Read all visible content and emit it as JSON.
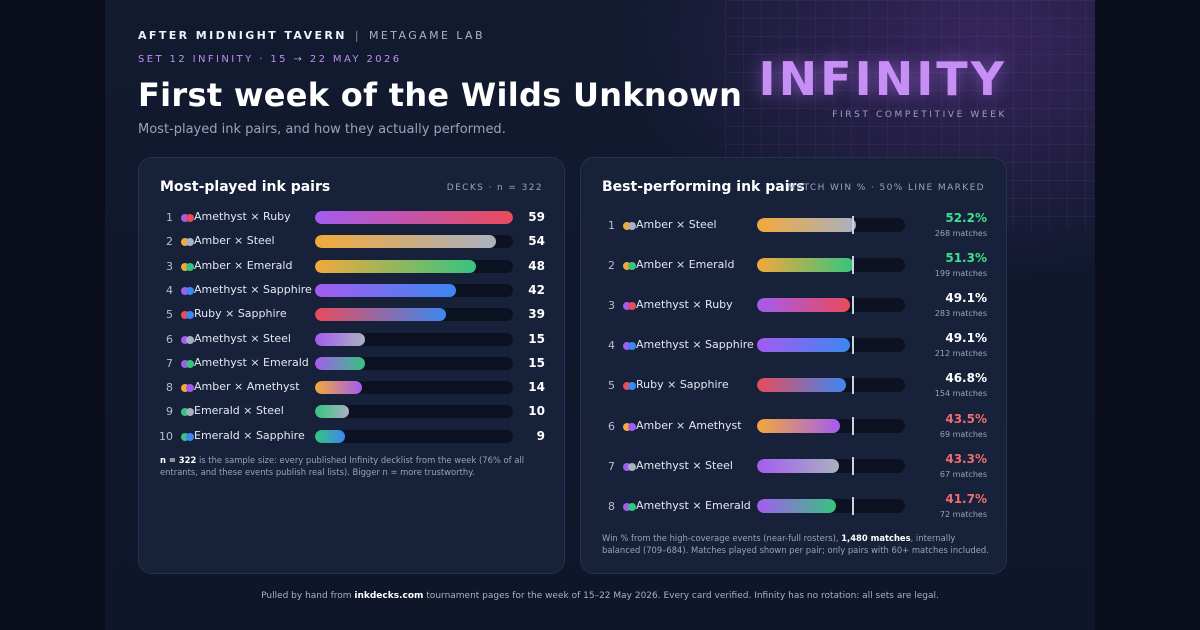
{
  "header": {
    "brand": "AFTER MIDNIGHT TAVERN",
    "separator": "|",
    "lab": "METAGAME LAB",
    "set_line": "SET 12 INFINITY · 15 → 22 MAY 2026",
    "title": "First week of the Wilds Unknown",
    "subtitle": "Most-played ink pairs, and how they actually performed.",
    "logo": "INFINITY",
    "logo_sub": "FIRST COMPETITIVE WEEK"
  },
  "colors": {
    "Amethyst": "#a45cf0",
    "Ruby": "#e84b5a",
    "Amber": "#f2a93b",
    "Steel": "#a9b1c0",
    "Emerald": "#36c47f",
    "Sapphire": "#3d87f0",
    "good": "#3fe08f",
    "neutral": "#ffffff",
    "bad": "#f06d6d"
  },
  "chart_data": [
    {
      "type": "bar",
      "orientation": "horizontal",
      "title": "Most-played ink pairs",
      "meta": "DECKS · n = 322",
      "categories": [
        "Amethyst × Ruby",
        "Amber × Steel",
        "Amber × Emerald",
        "Amethyst × Sapphire",
        "Ruby × Sapphire",
        "Amethyst × Steel",
        "Amethyst × Emerald",
        "Amber × Amethyst",
        "Emerald × Steel",
        "Emerald × Sapphire"
      ],
      "ranks": [
        "1",
        "2",
        "3",
        "4",
        "5",
        "6",
        "7",
        "8",
        "9",
        "10"
      ],
      "inks": [
        [
          "Amethyst",
          "Ruby"
        ],
        [
          "Amber",
          "Steel"
        ],
        [
          "Amber",
          "Emerald"
        ],
        [
          "Amethyst",
          "Sapphire"
        ],
        [
          "Ruby",
          "Sapphire"
        ],
        [
          "Amethyst",
          "Steel"
        ],
        [
          "Amethyst",
          "Emerald"
        ],
        [
          "Amber",
          "Amethyst"
        ],
        [
          "Emerald",
          "Steel"
        ],
        [
          "Emerald",
          "Sapphire"
        ]
      ],
      "values": [
        59,
        54,
        48,
        42,
        39,
        15,
        15,
        14,
        10,
        9
      ],
      "xlim": [
        0,
        59
      ],
      "note_bold": "n = 322",
      "note_rest": " is the sample size: every published Infinity decklist from the week (76% of all entrants, and these events publish real lists). Bigger n = more trustworthy."
    },
    {
      "type": "bar",
      "orientation": "horizontal",
      "title": "Best-performing ink pairs",
      "meta": "MATCH WIN % · 50% LINE MARKED",
      "categories": [
        "Amber × Steel",
        "Amber × Emerald",
        "Amethyst × Ruby",
        "Amethyst × Sapphire",
        "Ruby × Sapphire",
        "Amber × Amethyst",
        "Amethyst × Steel",
        "Amethyst × Emerald"
      ],
      "ranks": [
        "1",
        "2",
        "3",
        "4",
        "5",
        "6",
        "7",
        "8"
      ],
      "inks": [
        [
          "Amber",
          "Steel"
        ],
        [
          "Amber",
          "Emerald"
        ],
        [
          "Amethyst",
          "Ruby"
        ],
        [
          "Amethyst",
          "Sapphire"
        ],
        [
          "Ruby",
          "Sapphire"
        ],
        [
          "Amber",
          "Amethyst"
        ],
        [
          "Amethyst",
          "Steel"
        ],
        [
          "Amethyst",
          "Emerald"
        ]
      ],
      "values": [
        52.2,
        51.3,
        49.1,
        49.1,
        46.8,
        43.5,
        43.3,
        41.7
      ],
      "labels": [
        "52.2%",
        "51.3%",
        "49.1%",
        "49.1%",
        "46.8%",
        "43.5%",
        "43.3%",
        "41.7%"
      ],
      "status": [
        "good",
        "good",
        "neutral",
        "neutral",
        "neutral",
        "bad",
        "bad",
        "bad"
      ],
      "matches": [
        "268 matches",
        "199 matches",
        "283 matches",
        "212 matches",
        "154 matches",
        "69 matches",
        "67 matches",
        "72 matches"
      ],
      "reference_line": 50,
      "xlim": [
        0,
        78
      ],
      "note_a": "Win % from the high-coverage events (near-full rosters), ",
      "note_bold": "1,480 matches",
      "note_b": ", internally balanced (709–684). Matches played shown per pair; only pairs with 60+ matches included."
    }
  ],
  "footer": {
    "a": "Pulled by hand from ",
    "bold": "inkdecks.com",
    "b": " tournament pages for the week of 15–22 May 2026. Every card verified. Infinity has no rotation: all sets are legal."
  }
}
